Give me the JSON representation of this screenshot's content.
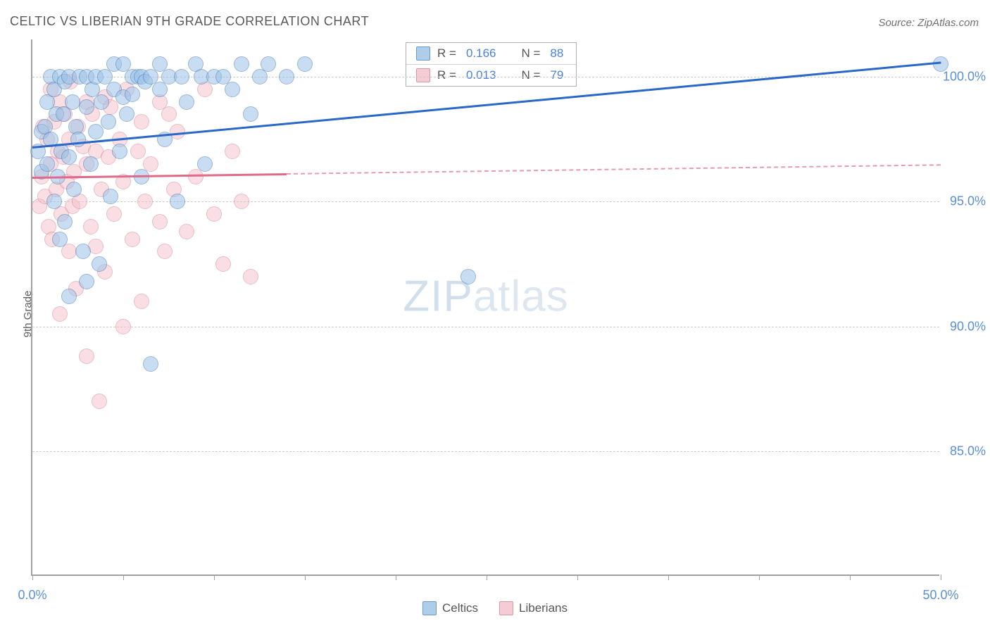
{
  "title": "CELTIC VS LIBERIAN 9TH GRADE CORRELATION CHART",
  "source": "Source: ZipAtlas.com",
  "y_axis_label": "9th Grade",
  "watermark_bold": "ZIP",
  "watermark_thin": "atlas",
  "chart": {
    "type": "scatter",
    "xlim": [
      0,
      50
    ],
    "ylim": [
      80,
      101.5
    ],
    "y_gridlines": [
      85,
      90,
      95,
      100
    ],
    "y_tick_labels": [
      "85.0%",
      "90.0%",
      "95.0%",
      "100.0%"
    ],
    "x_ticks": [
      0,
      5,
      10,
      15,
      20,
      25,
      30,
      35,
      40,
      45,
      50
    ],
    "x_tick_labels": {
      "0": "0.0%",
      "50": "50.0%"
    },
    "grid_color": "#cccccc",
    "background_color": "#ffffff",
    "marker_size": 22,
    "series": [
      {
        "name": "Celtics",
        "color_fill": "#9cc3e8",
        "color_stroke": "#4a7bb5",
        "R": "0.166",
        "N": "88",
        "trend": {
          "x0": 0,
          "y0": 97.2,
          "x1": 50,
          "y1": 100.6,
          "color": "#2968c8",
          "solid_until_x": 50
        },
        "points": [
          [
            0.3,
            97.0
          ],
          [
            0.5,
            96.2
          ],
          [
            0.5,
            97.8
          ],
          [
            0.7,
            98.0
          ],
          [
            0.8,
            96.5
          ],
          [
            0.8,
            99.0
          ],
          [
            1.0,
            97.5
          ],
          [
            1.0,
            100.0
          ],
          [
            1.2,
            95.0
          ],
          [
            1.2,
            99.5
          ],
          [
            1.3,
            98.5
          ],
          [
            1.4,
            96.0
          ],
          [
            1.5,
            93.5
          ],
          [
            1.5,
            100.0
          ],
          [
            1.6,
            97.0
          ],
          [
            1.7,
            98.5
          ],
          [
            1.8,
            94.2
          ],
          [
            1.8,
            99.8
          ],
          [
            2.0,
            91.2
          ],
          [
            2.0,
            96.8
          ],
          [
            2.0,
            100.0
          ],
          [
            2.2,
            99.0
          ],
          [
            2.3,
            95.5
          ],
          [
            2.4,
            98.0
          ],
          [
            2.5,
            97.5
          ],
          [
            2.6,
            100.0
          ],
          [
            2.8,
            93.0
          ],
          [
            3.0,
            91.8
          ],
          [
            3.0,
            98.8
          ],
          [
            3.0,
            100.0
          ],
          [
            3.2,
            96.5
          ],
          [
            3.3,
            99.5
          ],
          [
            3.5,
            97.8
          ],
          [
            3.5,
            100.0
          ],
          [
            3.7,
            92.5
          ],
          [
            3.8,
            99.0
          ],
          [
            4.0,
            100.0
          ],
          [
            4.2,
            98.2
          ],
          [
            4.3,
            95.2
          ],
          [
            4.5,
            99.5
          ],
          [
            4.5,
            100.5
          ],
          [
            4.8,
            97.0
          ],
          [
            5.0,
            99.2
          ],
          [
            5.0,
            100.5
          ],
          [
            5.2,
            98.5
          ],
          [
            5.5,
            100.0
          ],
          [
            5.5,
            99.3
          ],
          [
            5.8,
            100.0
          ],
          [
            6.0,
            96.0
          ],
          [
            6.0,
            100.0
          ],
          [
            6.2,
            99.8
          ],
          [
            6.5,
            88.5
          ],
          [
            6.5,
            100.0
          ],
          [
            7.0,
            99.5
          ],
          [
            7.0,
            100.5
          ],
          [
            7.3,
            97.5
          ],
          [
            7.5,
            100.0
          ],
          [
            8.0,
            95.0
          ],
          [
            8.2,
            100.0
          ],
          [
            8.5,
            99.0
          ],
          [
            9.0,
            100.5
          ],
          [
            9.3,
            100.0
          ],
          [
            9.5,
            96.5
          ],
          [
            10.0,
            100.0
          ],
          [
            10.5,
            100.0
          ],
          [
            11.0,
            99.5
          ],
          [
            11.5,
            100.5
          ],
          [
            12.0,
            98.5
          ],
          [
            12.5,
            100.0
          ],
          [
            13.0,
            100.5
          ],
          [
            14.0,
            100.0
          ],
          [
            15.0,
            100.5
          ],
          [
            24.0,
            92.0
          ],
          [
            50.0,
            100.5
          ]
        ]
      },
      {
        "name": "Liberians",
        "color_fill": "#f5c4cd",
        "color_stroke": "#d68a9a",
        "R": "0.013",
        "N": "79",
        "trend": {
          "x0": 0,
          "y0": 96.0,
          "x1": 50,
          "y1": 96.5,
          "color": "#e06a8a",
          "solid_until_x": 14
        },
        "points": [
          [
            0.4,
            94.8
          ],
          [
            0.5,
            96.0
          ],
          [
            0.6,
            98.0
          ],
          [
            0.7,
            95.2
          ],
          [
            0.8,
            97.5
          ],
          [
            0.9,
            94.0
          ],
          [
            1.0,
            96.5
          ],
          [
            1.0,
            99.5
          ],
          [
            1.1,
            93.5
          ],
          [
            1.2,
            98.2
          ],
          [
            1.3,
            95.5
          ],
          [
            1.4,
            97.0
          ],
          [
            1.5,
            90.5
          ],
          [
            1.5,
            99.0
          ],
          [
            1.6,
            94.5
          ],
          [
            1.7,
            96.8
          ],
          [
            1.8,
            98.5
          ],
          [
            1.9,
            95.8
          ],
          [
            2.0,
            93.0
          ],
          [
            2.0,
            97.5
          ],
          [
            2.1,
            99.8
          ],
          [
            2.2,
            94.8
          ],
          [
            2.3,
            96.2
          ],
          [
            2.4,
            91.5
          ],
          [
            2.5,
            98.0
          ],
          [
            2.6,
            95.0
          ],
          [
            2.8,
            97.2
          ],
          [
            3.0,
            88.8
          ],
          [
            3.0,
            96.5
          ],
          [
            3.0,
            99.0
          ],
          [
            3.2,
            94.0
          ],
          [
            3.3,
            98.5
          ],
          [
            3.5,
            93.2
          ],
          [
            3.5,
            97.0
          ],
          [
            3.7,
            87.0
          ],
          [
            3.8,
            95.5
          ],
          [
            4.0,
            99.2
          ],
          [
            4.0,
            92.2
          ],
          [
            4.2,
            96.8
          ],
          [
            4.3,
            98.8
          ],
          [
            4.5,
            94.5
          ],
          [
            4.8,
            97.5
          ],
          [
            5.0,
            90.0
          ],
          [
            5.0,
            95.8
          ],
          [
            5.2,
            99.5
          ],
          [
            5.5,
            93.5
          ],
          [
            5.8,
            97.0
          ],
          [
            6.0,
            91.0
          ],
          [
            6.0,
            98.2
          ],
          [
            6.2,
            95.0
          ],
          [
            6.5,
            96.5
          ],
          [
            7.0,
            94.2
          ],
          [
            7.0,
            99.0
          ],
          [
            7.3,
            93.0
          ],
          [
            7.5,
            98.5
          ],
          [
            7.8,
            95.5
          ],
          [
            8.0,
            97.8
          ],
          [
            8.5,
            93.8
          ],
          [
            9.0,
            96.0
          ],
          [
            9.5,
            99.5
          ],
          [
            10.0,
            94.5
          ],
          [
            10.5,
            92.5
          ],
          [
            11.0,
            97.0
          ],
          [
            11.5,
            95.0
          ],
          [
            12.0,
            92.0
          ]
        ]
      }
    ]
  },
  "legend_box": {
    "rows": [
      {
        "series": 0,
        "r_label": "R =",
        "r_val": "0.166",
        "n_label": "N =",
        "n_val": "88"
      },
      {
        "series": 1,
        "r_label": "R =",
        "r_val": "0.013",
        "n_label": "N =",
        "n_val": "79"
      }
    ]
  },
  "bottom_legend": [
    {
      "series": 0,
      "label": "Celtics"
    },
    {
      "series": 1,
      "label": "Liberians"
    }
  ]
}
